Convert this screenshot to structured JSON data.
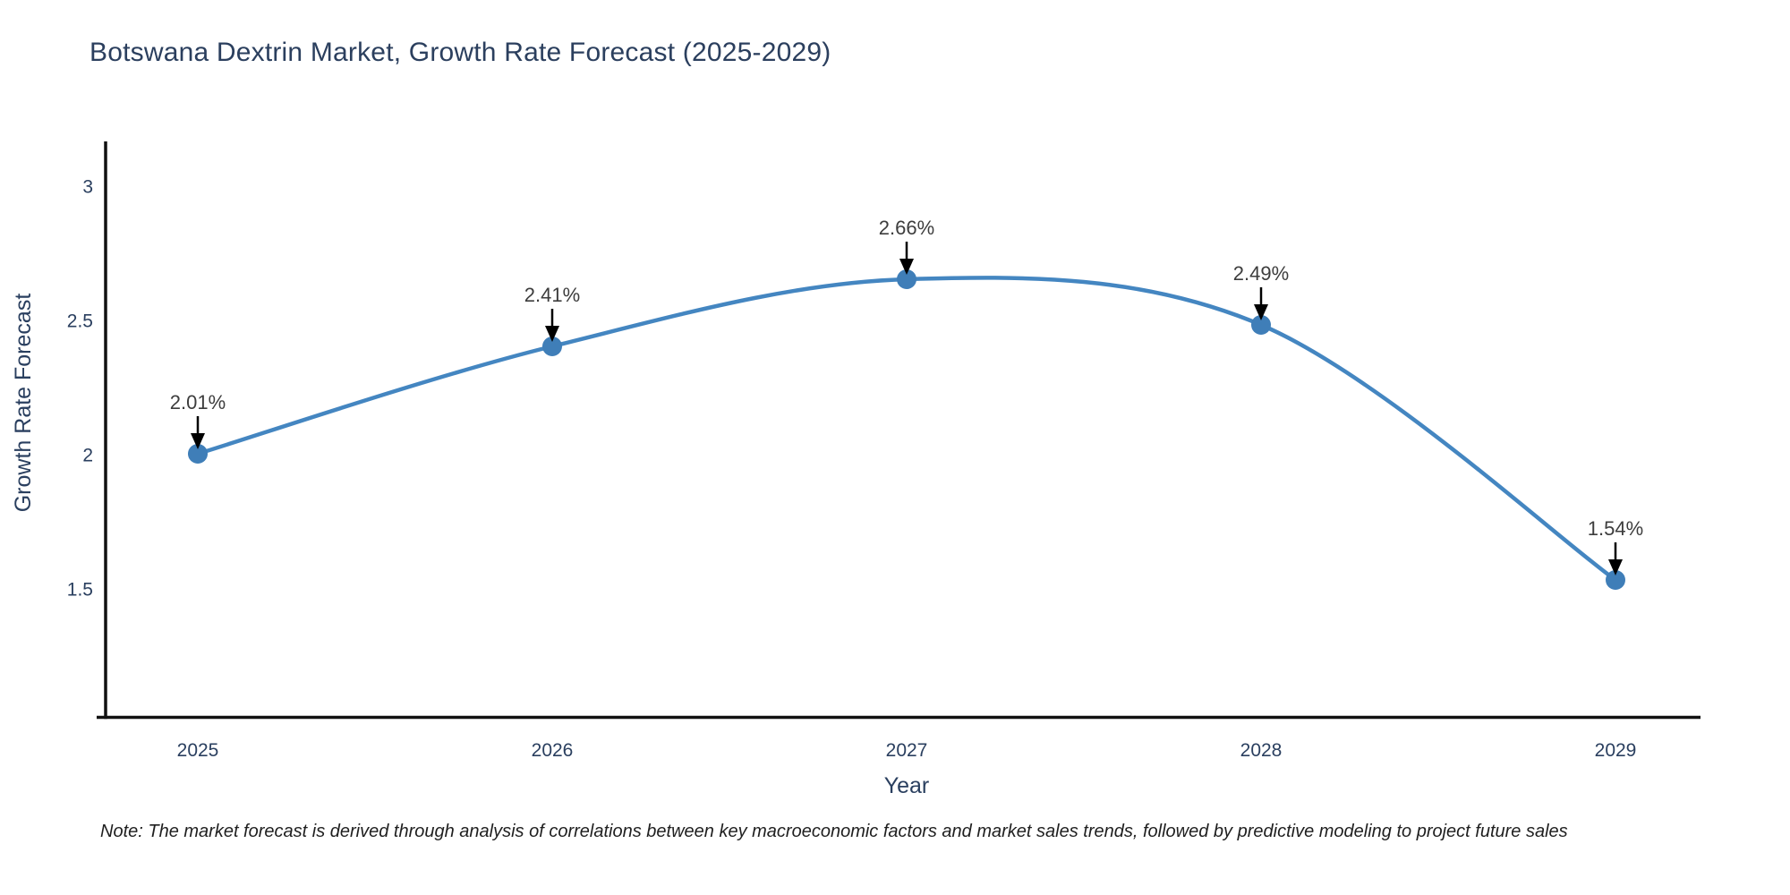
{
  "title": "Botswana Dextrin Market, Growth Rate Forecast (2025-2029)",
  "note": "Note: The market forecast is derived through analysis of correlations between key macroeconomic factors and market sales trends, followed by predictive modeling to project future sales",
  "chart_data": {
    "type": "line",
    "title": "Botswana Dextrin Market, Growth Rate Forecast (2025-2029)",
    "x": [
      2025,
      2026,
      2027,
      2028,
      2029
    ],
    "categories": [
      "2025",
      "2026",
      "2027",
      "2028",
      "2029"
    ],
    "series": [
      {
        "name": "Growth Rate Forecast",
        "values": [
          2.01,
          2.41,
          2.66,
          2.49,
          1.54
        ]
      }
    ],
    "point_labels": [
      "2.01%",
      "2.41%",
      "2.66%",
      "2.49%",
      "1.54%"
    ],
    "xlabel": "Year",
    "ylabel": "Growth Rate Forecast",
    "y_ticks": [
      {
        "value": 3,
        "label": "3"
      },
      {
        "value": 2.5,
        "label": "2.5"
      },
      {
        "value": 2,
        "label": "2"
      },
      {
        "value": 1.5,
        "label": "1.5"
      }
    ],
    "ylim": [
      1.0,
      3.17
    ],
    "grid": false,
    "legend": "none",
    "line_shape": "spline",
    "colors": {
      "line": "#4486c1",
      "marker": "#3f7eb8",
      "axis_line": "#111111",
      "tick_text": "#2a3f5f",
      "axis_title_text": "#2a3f5f",
      "title_text": "#2b3f5e",
      "annotation_text": "#3d3d3d",
      "arrow": "#000000"
    }
  }
}
